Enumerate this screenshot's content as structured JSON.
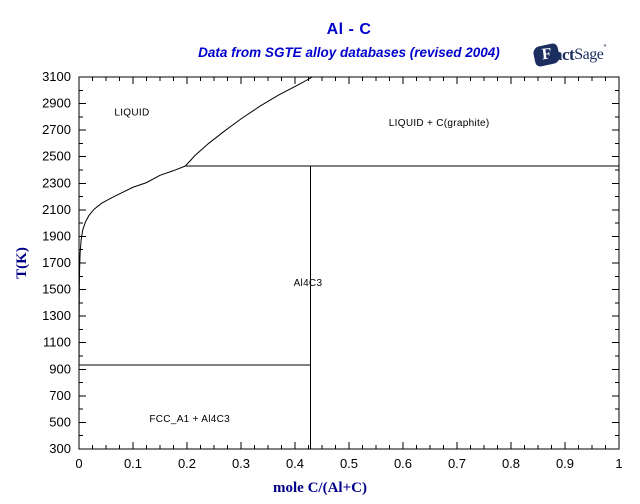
{
  "header": {
    "title": "Al - C",
    "subtitle": "Data from SGTE alloy databases (revised 2004)"
  },
  "logo": {
    "f": "F",
    "act": "act",
    "sage": "Sage",
    "tm": "”"
  },
  "axes": {
    "xlabel": "mole C/(Al+C)",
    "ylabel": "T(K)"
  },
  "colors": {
    "title_blue": "#0000cc",
    "axis_title_navy": "#00008b",
    "line_black": "#000000",
    "logo_navy": "#1b2e5f",
    "background": "#ffffff"
  },
  "chart_data": {
    "type": "line",
    "title": "Al - C",
    "subtitle": "Data from SGTE alloy databases (revised 2004)",
    "xlabel": "mole C/(Al+C)",
    "ylabel": "T(K)",
    "xlim": [
      0,
      1
    ],
    "ylim": [
      300,
      3100
    ],
    "grid": false,
    "legend": "none",
    "x_major_ticks": [
      0,
      0.1,
      0.2,
      0.3,
      0.4,
      0.5,
      0.6,
      0.7,
      0.8,
      0.9,
      1
    ],
    "x_tick_labels": [
      "0",
      "0.1",
      "0.2",
      "0.3",
      "0.4",
      "0.5",
      "0.6",
      "0.7",
      "0.8",
      "0.9",
      "1"
    ],
    "x_minor_step": 0.025,
    "y_major_ticks": [
      300,
      500,
      700,
      900,
      1100,
      1300,
      1500,
      1700,
      1900,
      2100,
      2300,
      2500,
      2700,
      2900,
      3100
    ],
    "y_tick_labels": [
      "300",
      "500",
      "700",
      "900",
      "1100",
      "1300",
      "1500",
      "1700",
      "1900",
      "2100",
      "2300",
      "2500",
      "2700",
      "2900",
      "3100"
    ],
    "y_minor_step": 100,
    "series": [
      {
        "name": "liquidus-al-rich",
        "points": [
          [
            0.0001,
            940
          ],
          [
            0.0003,
            1300
          ],
          [
            0.0006,
            1500
          ],
          [
            0.001,
            1640
          ],
          [
            0.002,
            1770
          ],
          [
            0.004,
            1875
          ],
          [
            0.007,
            1950
          ],
          [
            0.012,
            2010
          ],
          [
            0.018,
            2055
          ],
          [
            0.028,
            2105
          ],
          [
            0.042,
            2150
          ],
          [
            0.06,
            2190
          ],
          [
            0.08,
            2230
          ],
          [
            0.1,
            2270
          ],
          [
            0.125,
            2305
          ],
          [
            0.15,
            2360
          ],
          [
            0.175,
            2395
          ],
          [
            0.197,
            2430
          ]
        ]
      },
      {
        "name": "liquidus-graphite",
        "points": [
          [
            0.197,
            2430
          ],
          [
            0.215,
            2510
          ],
          [
            0.24,
            2600
          ],
          [
            0.27,
            2695
          ],
          [
            0.3,
            2785
          ],
          [
            0.335,
            2880
          ],
          [
            0.37,
            2965
          ],
          [
            0.41,
            3050
          ],
          [
            0.432,
            3100
          ]
        ]
      },
      {
        "name": "peritectic-line-2430K",
        "points": [
          [
            0.197,
            2430
          ],
          [
            1,
            2430
          ]
        ]
      },
      {
        "name": "al4c3-stoichiometric-line",
        "points": [
          [
            0.4286,
            300
          ],
          [
            0.4286,
            2430
          ]
        ]
      },
      {
        "name": "eutectic-line-933K",
        "points": [
          [
            0,
            933
          ],
          [
            0.4286,
            933
          ]
        ]
      }
    ],
    "region_labels": [
      {
        "text": "LIQUID",
        "x": 0.098,
        "T": 2840
      },
      {
        "text": "LIQUID + C(graphite)",
        "x": 0.667,
        "T": 2760
      },
      {
        "text": "Al4C3",
        "x": 0.424,
        "T": 1557
      },
      {
        "text": "FCC_A1 + Al4C3",
        "x": 0.205,
        "T": 533
      }
    ]
  }
}
